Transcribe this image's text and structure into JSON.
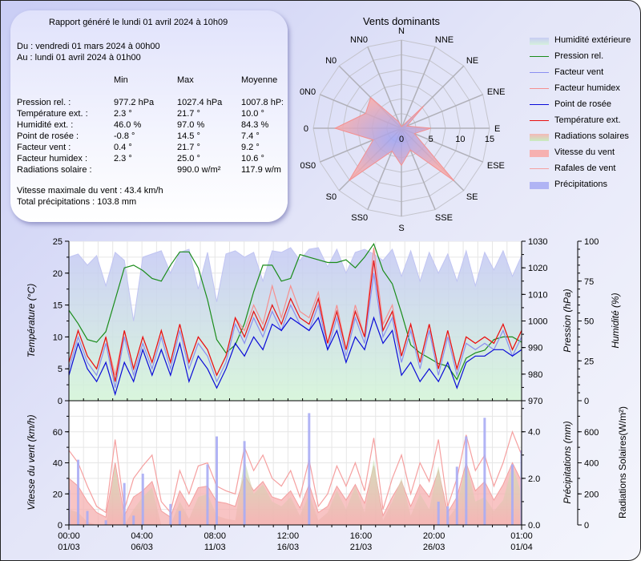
{
  "report": {
    "generated": "Rapport généré le lundi 01 avril 2024 à 10h09",
    "from": "Du : vendredi 01 mars 2024 à 00h00",
    "to": "Au : lundi 01 avril 2024 à 01h00",
    "headers": [
      "Min",
      "Max",
      "Moyenne"
    ],
    "rows": [
      {
        "label": "Pression rel. :",
        "min": "977.2 hPa",
        "max": "1027.4 hPa",
        "avg": "1007.8 hP:"
      },
      {
        "label": "Température ext. :",
        "min": "2.3 °",
        "max": "21.7 °",
        "avg": "10.0 °"
      },
      {
        "label": "Humidité ext. :",
        "min": "46.0 %",
        "max": "97.0 %",
        "avg": "84.3 %"
      },
      {
        "label": "Point de rosée :",
        "min": "-0.8 °",
        "max": "14.5 °",
        "avg": "7.4 °"
      },
      {
        "label": "Facteur vent :",
        "min": "0.4 °",
        "max": "21.7 °",
        "avg": "9.2 °"
      },
      {
        "label": "Facteur humidex :",
        "min": "2.3 °",
        "max": "25.0 °",
        "avg": "10.6 °"
      },
      {
        "label": "Radiations solaire :",
        "min": "",
        "max": "990.0 w/m²",
        "avg": "117.9 w/m"
      }
    ],
    "max_wind": "Vitesse maximale du vent : 43.4 km/h",
    "total_precip": "Total précipitations : 103.8 mm"
  },
  "legend": [
    {
      "label": "Humidité extérieure",
      "kind": "swatch",
      "color": "#c8ccf4",
      "color2": "#d4f0dc"
    },
    {
      "label": "Pression rel.",
      "kind": "line",
      "color": "#1a8c1a"
    },
    {
      "label": "Facteur vent",
      "kind": "line",
      "color": "#8a8ff0"
    },
    {
      "label": "Facteur humidex",
      "kind": "line",
      "color": "#f59090"
    },
    {
      "label": "Point de rosée",
      "kind": "line",
      "color": "#0a0ad8"
    },
    {
      "label": "Température ext.",
      "kind": "line",
      "color": "#e81010"
    },
    {
      "label": "Radiations solaires",
      "kind": "swatch",
      "color": "#f4b8b8",
      "color2": "#c8ecc0"
    },
    {
      "label": "Vitesse du vent",
      "kind": "swatch",
      "color": "#f6b0b0",
      "color2": "#f6b0b0"
    },
    {
      "label": "Rafales de vent",
      "kind": "line",
      "color": "#f5a0a0"
    },
    {
      "label": "Précipitations",
      "kind": "swatch",
      "color": "#b0b4f4",
      "color2": "#b0b4f4"
    }
  ],
  "chart_data": [
    {
      "type": "radar",
      "title": "Vents dominants",
      "directions": [
        "N",
        "NNE",
        "NE",
        "ENE",
        "E",
        "ESE",
        "SE",
        "SSE",
        "S",
        "SS0",
        "S0",
        "0S0",
        "0",
        "0N0",
        "N0",
        "NN0"
      ],
      "values": [
        0.3,
        0.4,
        5.4,
        1.0,
        5.0,
        2.4,
        12.7,
        4.0,
        6.3,
        4.2,
        12.6,
        5.2,
        11.3,
        6.6,
        7.4,
        1.2
      ],
      "radial_ticks": [
        "0",
        "5",
        "10",
        "15"
      ],
      "rmax": 15
    },
    {
      "type": "line",
      "title": "",
      "x_ticks": [
        {
          "time": "00:00",
          "date": "01/03"
        },
        {
          "time": "04:00",
          "date": "06/03"
        },
        {
          "time": "08:00",
          "date": "11/03"
        },
        {
          "time": "12:00",
          "date": "16/03"
        },
        {
          "time": "16:00",
          "date": "21/03"
        },
        {
          "time": "20:00",
          "date": "26/03"
        },
        {
          "time": "01:00",
          "date": "01/04"
        }
      ],
      "x_days": [
        0,
        31
      ],
      "upper": {
        "ylabel_left": "Température (°C)",
        "ylim_left": [
          0,
          25
        ],
        "yticks_left": [
          "0",
          "5",
          "10",
          "15",
          "20",
          "25"
        ],
        "ylabel_right1": "Pression (hPa)",
        "ylim_right1": [
          970,
          1030
        ],
        "yticks_right1": [
          "970",
          "980",
          "990",
          "1000",
          "1010",
          "1020",
          "1030"
        ],
        "ylabel_right2": "Humidité (%)",
        "ylim_right2": [
          0,
          100
        ],
        "yticks_right2": [
          "0",
          "25",
          "50",
          "75",
          "100"
        ],
        "series": [
          {
            "name": "Pression rel.",
            "axis": "pressure",
            "values": [
              1004,
              999,
              993,
              992,
              996,
              1008,
              1020,
              1021,
              1019,
              1016,
              1015,
              1021,
              1026,
              1026,
              1020,
              1008,
              993,
              988,
              991,
              999,
              1011,
              1021,
              1021,
              1015,
              1016,
              1025,
              1024,
              1023,
              1022,
              1022,
              1023,
              1020,
              1024,
              1029,
              1019,
              1014,
              1003,
              991,
              988,
              986,
              984,
              983,
              978,
              986,
              988,
              989,
              993,
              994,
              994,
              992
            ]
          },
          {
            "name": "Température ext.",
            "axis": "temperature",
            "values": [
              6,
              11,
              7,
              5,
              10,
              3,
              11,
              5,
              10,
              6,
              11,
              6,
              12,
              6,
              10,
              8,
              4,
              7,
              13,
              10,
              14,
              11,
              15,
              12,
              16,
              13,
              12,
              16,
              9,
              14,
              8,
              14,
              10,
              22,
              11,
              14,
              7,
              12,
              6,
              12,
              5,
              11,
              5,
              10,
              9,
              10,
              9,
              12,
              8,
              11
            ]
          },
          {
            "name": "Facteur humidex",
            "axis": "temperature",
            "values": [
              6,
              11,
              7,
              5,
              10,
              4,
              11,
              5,
              10,
              6,
              11,
              6,
              12,
              6,
              10,
              8,
              4,
              7,
              13,
              11,
              15,
              12,
              18,
              13,
              18,
              14,
              13,
              17,
              9,
              15,
              8,
              15,
              10,
              24,
              12,
              15,
              7,
              12,
              6,
              12,
              5,
              11,
              5,
              10,
              9,
              10,
              9,
              12,
              8,
              11
            ]
          },
          {
            "name": "Point de rosée",
            "axis": "temperature",
            "values": [
              4,
              9,
              5,
              3,
              6,
              1,
              6,
              3,
              8,
              4,
              8,
              4,
              9,
              3,
              7,
              5,
              2,
              5,
              9,
              7,
              10,
              8,
              12,
              11,
              13,
              12,
              11,
              13,
              8,
              11,
              6,
              10,
              8,
              13,
              9,
              11,
              4,
              6,
              3,
              5,
              3,
              6,
              2,
              6,
              7,
              7,
              8,
              8,
              7,
              8
            ]
          },
          {
            "name": "Facteur vent",
            "axis": "temperature",
            "values": [
              5,
              10,
              6,
              4,
              9,
              2,
              10,
              4,
              9,
              5,
              10,
              5,
              11,
              5,
              9,
              7,
              3,
              6,
              12,
              9,
              13,
              10,
              14,
              11,
              15,
              12,
              11,
              15,
              8,
              13,
              7,
              13,
              9,
              20,
              10,
              13,
              6,
              11,
              5,
              11,
              4,
              10,
              4,
              9,
              8,
              9,
              8,
              11,
              7,
              10
            ]
          },
          {
            "name": "Humidité extérieure",
            "axis": "humidity",
            "values": [
              90,
              92,
              85,
              91,
              72,
              93,
              88,
              50,
              90,
              92,
              94,
              80,
              93,
              95,
              70,
              93,
              62,
              92,
              94,
              90,
              93,
              75,
              94,
              93,
              96,
              88,
              95,
              96,
              84,
              95,
              80,
              93,
              95,
              92,
              88,
              95,
              78,
              94,
              75,
              93,
              80,
              92,
              75,
              94,
              72,
              93,
              82,
              94,
              78,
              91
            ]
          }
        ]
      },
      "lower": {
        "ylabel_left": "Vitesse du vent (km/h)",
        "ylim_left": [
          0,
          80
        ],
        "yticks_left": [
          "0",
          "20",
          "40",
          "60"
        ],
        "ylabel_right1": "Précipitations (mm)",
        "ylim_right1": [
          0,
          5.333
        ],
        "yticks_right1": [
          "0.0",
          "2.0",
          "4.0"
        ],
        "ylabel_right2": "Radiations Solaires(W/m²)",
        "ylim_right2": [
          0,
          800
        ],
        "yticks_right2": [
          "0",
          "200",
          "400",
          "600"
        ],
        "series": [
          {
            "name": "Rafales de vent",
            "axis": "wind",
            "values": [
              48,
              40,
              25,
              12,
              8,
              55,
              10,
              30,
              38,
              45,
              15,
              8,
              35,
              20,
              38,
              40,
              25,
              22,
              20,
              50,
              35,
              45,
              30,
              25,
              35,
              18,
              42,
              12,
              20,
              38,
              25,
              40,
              22,
              56,
              10,
              30,
              45,
              20,
              40,
              28,
              55,
              12,
              30,
              58,
              35,
              45,
              25,
              40,
              60,
              45
            ]
          },
          {
            "name": "Vitesse du vent",
            "axis": "wind",
            "values": [
              30,
              25,
              15,
              8,
              5,
              40,
              6,
              18,
              22,
              28,
              9,
              5,
              22,
              12,
              24,
              25,
              15,
              14,
              12,
              32,
              22,
              28,
              18,
              16,
              22,
              11,
              26,
              8,
              12,
              25,
              16,
              26,
              14,
              38,
              6,
              18,
              28,
              12,
              26,
              18,
              35,
              8,
              18,
              40,
              22,
              28,
              16,
              26,
              40,
              28
            ]
          },
          {
            "name": "Radiations solaires",
            "axis": "radiation",
            "values": [
              100,
              80,
              20,
              0,
              0,
              380,
              0,
              100,
              180,
              240,
              0,
              0,
              150,
              40,
              180,
              200,
              60,
              40,
              30,
              420,
              200,
              260,
              150,
              120,
              180,
              60,
              200,
              30,
              80,
              220,
              100,
              250,
              80,
              420,
              30,
              150,
              300,
              60,
              200,
              100,
              380,
              40,
              120,
              400,
              150,
              180,
              90,
              160,
              380,
              200
            ]
          },
          {
            "name": "Précipitations",
            "axis": "precip",
            "values": [
              1.5,
              2.8,
              0.6,
              0,
              0.2,
              0,
              1.8,
              0.4,
              2.2,
              0,
              0,
              0.9,
              0.6,
              0,
              0,
              2.6,
              3.8,
              0,
              0,
              3.6,
              0,
              0,
              0,
              0,
              0,
              0,
              4.8,
              0,
              0,
              0,
              0,
              0,
              0,
              0,
              0,
              0,
              0,
              0,
              0,
              0,
              1.0,
              0.8,
              2.5,
              3.8,
              0,
              4.6,
              0,
              0,
              2.6,
              3.2
            ]
          }
        ]
      }
    }
  ]
}
